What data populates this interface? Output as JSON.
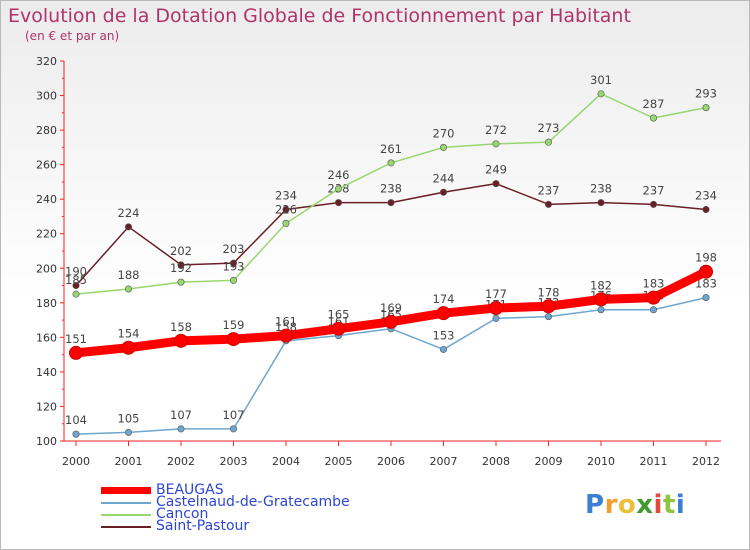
{
  "chart_data": {
    "type": "line",
    "title": "Evolution de la Dotation Globale de Fonctionnement par Habitant",
    "subtitle": "(en € et par an)",
    "x": [
      "2000",
      "2001",
      "2002",
      "2003",
      "2004",
      "2005",
      "2006",
      "2007",
      "2008",
      "2009",
      "2010",
      "2011",
      "2012"
    ],
    "ylim": [
      100,
      320
    ],
    "yticks": [
      100,
      120,
      140,
      160,
      180,
      200,
      220,
      240,
      260,
      280,
      300,
      320
    ],
    "grid": false,
    "legend_position": "bottom-left",
    "series": [
      {
        "name": "Saint-Pastour",
        "color": "#6b1e26",
        "values": [
          190,
          224,
          202,
          203,
          234,
          238,
          238,
          244,
          249,
          237,
          238,
          237,
          234
        ]
      },
      {
        "name": "Cancon",
        "color": "#98d66f",
        "values": [
          185,
          188,
          192,
          193,
          226,
          246,
          261,
          270,
          272,
          273,
          301,
          287,
          293
        ]
      },
      {
        "name": "Castelnaud-de-Gratecambe",
        "color": "#6ea6cf",
        "values": [
          104,
          105,
          107,
          107,
          158,
          161,
          165,
          153,
          171,
          172,
          176,
          176,
          183
        ]
      },
      {
        "name": "BEAUGAS",
        "color": "#ff0000",
        "values": [
          151,
          154,
          158,
          159,
          161,
          165,
          169,
          174,
          177,
          178,
          182,
          183,
          198
        ]
      }
    ]
  },
  "legend": [
    {
      "name": "BEAUGAS",
      "color": "#ff0000"
    },
    {
      "name": "Castelnaud-de-Gratecambe",
      "color": "#6ea6cf"
    },
    {
      "name": "Cancon",
      "color": "#98d66f"
    },
    {
      "name": "Saint-Pastour",
      "color": "#6b1e26"
    }
  ],
  "logo": {
    "letters": [
      "P",
      "r",
      "o",
      "x",
      "i",
      "t",
      "i"
    ],
    "colors": [
      "#3a7fd0",
      "#f2a02b",
      "#e9c03a",
      "#3e9a2e",
      "#e24a39",
      "#8fc43f",
      "#3a7fd0"
    ]
  }
}
